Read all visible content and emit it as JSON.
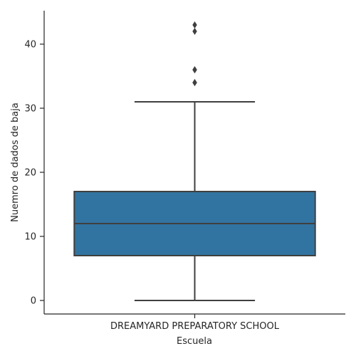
{
  "chart_data": {
    "type": "box",
    "xlabel": "Escuela",
    "ylabel": "Nuemro de dados de baja",
    "categories": [
      "DREAMYARD PREPARATORY SCHOOL"
    ],
    "ylim": [
      -2,
      45
    ],
    "yticks": [
      0,
      10,
      20,
      30,
      40
    ],
    "grid": false,
    "box_color": "#3274a1",
    "line_color": "#3f3f3f",
    "boxes": [
      {
        "category": "DREAMYARD PREPARATORY SCHOOL",
        "whisker_low": 0,
        "q1": 7,
        "median": 12,
        "q3": 17,
        "whisker_high": 31,
        "outliers": [
          34,
          34,
          36,
          36,
          42,
          43
        ]
      }
    ]
  }
}
